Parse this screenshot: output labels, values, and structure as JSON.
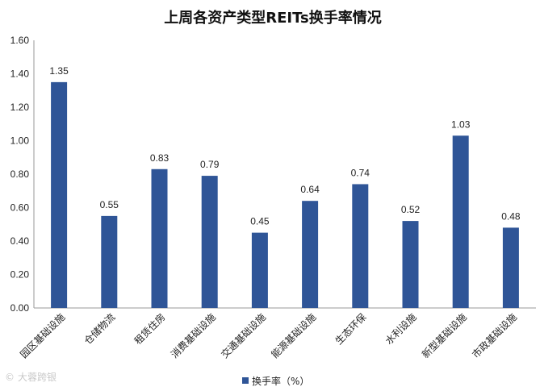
{
  "chart_data": {
    "type": "bar",
    "title": "上周各资产类型REITs换手率情况",
    "categories": [
      "园区基础设施",
      "仓储物流",
      "租赁住房",
      "消费基础设施",
      "交通基础设施",
      "能源基础设施",
      "生态环保",
      "水利设施",
      "新型基础设施",
      "市政基础设施"
    ],
    "series": [
      {
        "name": "换手率（%）",
        "values": [
          1.35,
          0.55,
          0.83,
          0.79,
          0.45,
          0.64,
          0.74,
          0.52,
          1.03,
          0.48
        ]
      }
    ],
    "data_labels": [
      "1.35",
      "0.55",
      "0.83",
      "0.79",
      "0.45",
      "0.64",
      "0.74",
      "0.52",
      "1.03",
      "0.48"
    ],
    "y_ticks": [
      "0.00",
      "0.20",
      "0.40",
      "0.60",
      "0.80",
      "1.00",
      "1.20",
      "1.40",
      "1.60"
    ],
    "ylim": [
      0,
      1.6
    ],
    "grid": false,
    "legend_position": "bottom",
    "bar_color": "#2F5597",
    "watermark": "大蓉跨银"
  }
}
